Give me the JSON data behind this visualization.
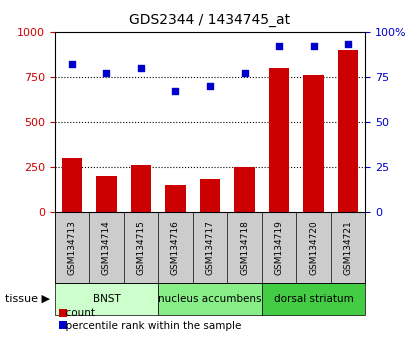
{
  "title": "GDS2344 / 1434745_at",
  "samples": [
    "GSM134713",
    "GSM134714",
    "GSM134715",
    "GSM134716",
    "GSM134717",
    "GSM134718",
    "GSM134719",
    "GSM134720",
    "GSM134721"
  ],
  "counts": [
    300,
    200,
    260,
    150,
    185,
    250,
    800,
    760,
    900
  ],
  "percentiles": [
    82,
    77,
    80,
    67,
    70,
    77,
    92,
    92,
    93
  ],
  "bar_color": "#cc0000",
  "dot_color": "#0000cc",
  "left_ylim": [
    0,
    1000
  ],
  "right_ylim": [
    0,
    100
  ],
  "left_yticks": [
    0,
    250,
    500,
    750,
    1000
  ],
  "right_yticks": [
    0,
    25,
    50,
    75,
    100
  ],
  "left_yticklabels": [
    "0",
    "250",
    "500",
    "750",
    "1000"
  ],
  "right_yticklabels": [
    "0",
    "25",
    "50",
    "75",
    "100%"
  ],
  "groups": [
    {
      "label": "BNST",
      "start": 0,
      "end": 3,
      "color": "#ccffcc"
    },
    {
      "label": "nucleus accumbens",
      "start": 3,
      "end": 6,
      "color": "#88ee88"
    },
    {
      "label": "dorsal striatum",
      "start": 6,
      "end": 9,
      "color": "#44cc44"
    }
  ],
  "tissue_label": "tissue",
  "legend_count_label": "count",
  "legend_pct_label": "percentile rank within the sample",
  "plot_bg_color": "#ffffff",
  "xtick_bg_color": "#cccccc",
  "bar_width": 0.6
}
